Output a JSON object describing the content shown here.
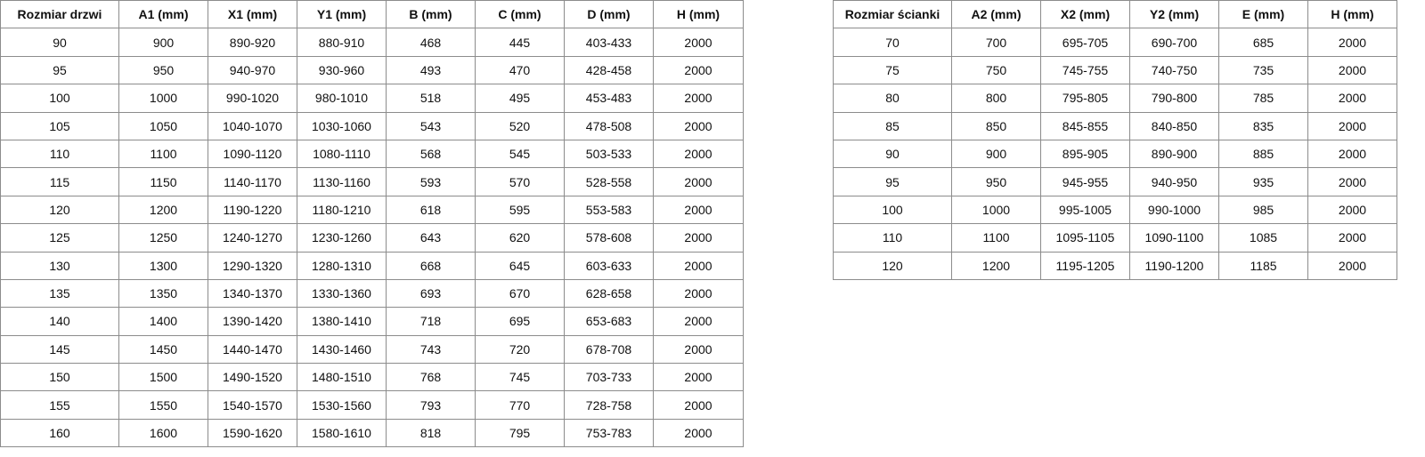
{
  "door_table": {
    "headers": [
      "Rozmiar drzwi",
      "A1 (mm)",
      "X1 (mm)",
      "Y1 (mm)",
      "B (mm)",
      "C (mm)",
      "D (mm)",
      "H (mm)"
    ],
    "rows": [
      [
        "90",
        "900",
        "890-920",
        "880-910",
        "468",
        "445",
        "403-433",
        "2000"
      ],
      [
        "95",
        "950",
        "940-970",
        "930-960",
        "493",
        "470",
        "428-458",
        "2000"
      ],
      [
        "100",
        "1000",
        "990-1020",
        "980-1010",
        "518",
        "495",
        "453-483",
        "2000"
      ],
      [
        "105",
        "1050",
        "1040-1070",
        "1030-1060",
        "543",
        "520",
        "478-508",
        "2000"
      ],
      [
        "110",
        "1100",
        "1090-1120",
        "1080-1110",
        "568",
        "545",
        "503-533",
        "2000"
      ],
      [
        "115",
        "1150",
        "1140-1170",
        "1130-1160",
        "593",
        "570",
        "528-558",
        "2000"
      ],
      [
        "120",
        "1200",
        "1190-1220",
        "1180-1210",
        "618",
        "595",
        "553-583",
        "2000"
      ],
      [
        "125",
        "1250",
        "1240-1270",
        "1230-1260",
        "643",
        "620",
        "578-608",
        "2000"
      ],
      [
        "130",
        "1300",
        "1290-1320",
        "1280-1310",
        "668",
        "645",
        "603-633",
        "2000"
      ],
      [
        "135",
        "1350",
        "1340-1370",
        "1330-1360",
        "693",
        "670",
        "628-658",
        "2000"
      ],
      [
        "140",
        "1400",
        "1390-1420",
        "1380-1410",
        "718",
        "695",
        "653-683",
        "2000"
      ],
      [
        "145",
        "1450",
        "1440-1470",
        "1430-1460",
        "743",
        "720",
        "678-708",
        "2000"
      ],
      [
        "150",
        "1500",
        "1490-1520",
        "1480-1510",
        "768",
        "745",
        "703-733",
        "2000"
      ],
      [
        "155",
        "1550",
        "1540-1570",
        "1530-1560",
        "793",
        "770",
        "728-758",
        "2000"
      ],
      [
        "160",
        "1600",
        "1590-1620",
        "1580-1610",
        "818",
        "795",
        "753-783",
        "2000"
      ]
    ]
  },
  "wall_table": {
    "headers": [
      "Rozmiar ścianki",
      "A2 (mm)",
      "X2 (mm)",
      "Y2 (mm)",
      "E (mm)",
      "H (mm)"
    ],
    "rows": [
      [
        "70",
        "700",
        "695-705",
        "690-700",
        "685",
        "2000"
      ],
      [
        "75",
        "750",
        "745-755",
        "740-750",
        "735",
        "2000"
      ],
      [
        "80",
        "800",
        "795-805",
        "790-800",
        "785",
        "2000"
      ],
      [
        "85",
        "850",
        "845-855",
        "840-850",
        "835",
        "2000"
      ],
      [
        "90",
        "900",
        "895-905",
        "890-900",
        "885",
        "2000"
      ],
      [
        "95",
        "950",
        "945-955",
        "940-950",
        "935",
        "2000"
      ],
      [
        "100",
        "1000",
        "995-1005",
        "990-1000",
        "985",
        "2000"
      ],
      [
        "110",
        "1100",
        "1095-1105",
        "1090-1100",
        "1085",
        "2000"
      ],
      [
        "120",
        "1200",
        "1195-1205",
        "1190-1200",
        "1185",
        "2000"
      ]
    ]
  }
}
